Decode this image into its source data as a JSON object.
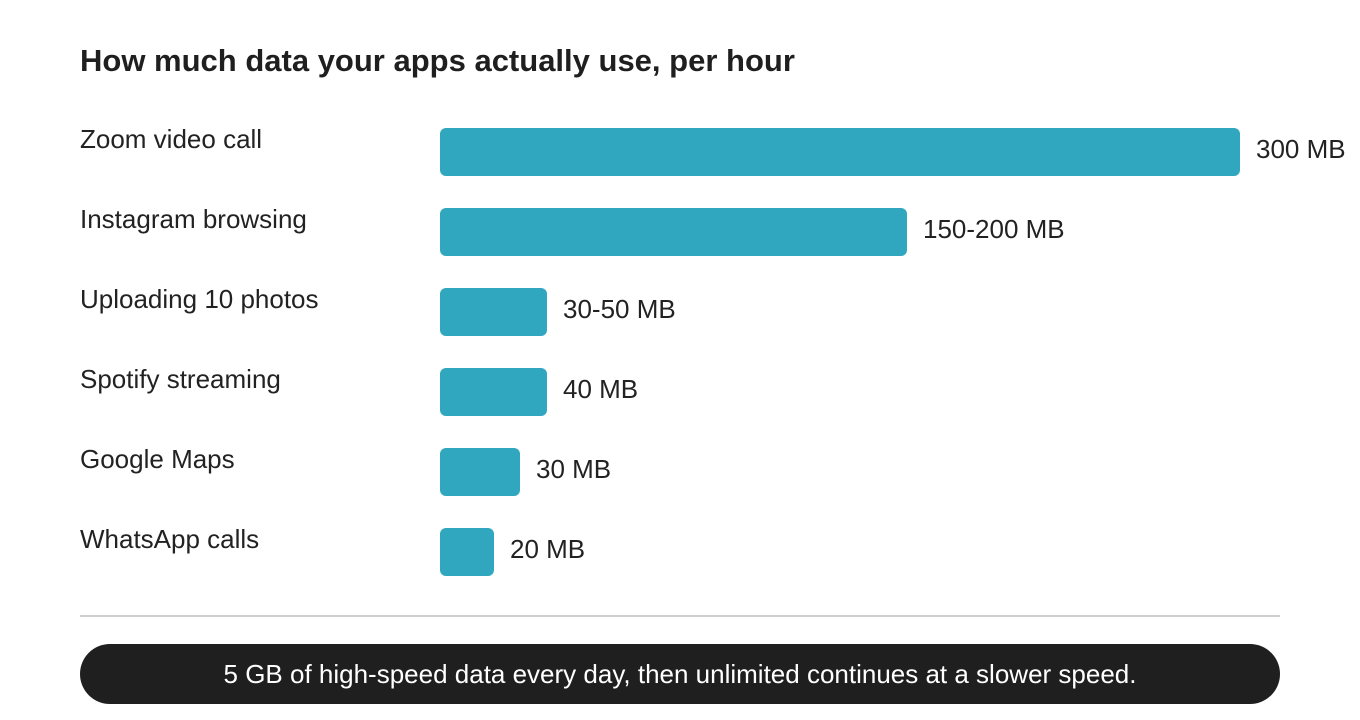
{
  "title": "How much data your apps actually use, per hour",
  "colors": {
    "bar": "#31a7bf",
    "footer_background": "#1f1f1f",
    "footer_text": "#ffffff"
  },
  "chart_data": {
    "type": "bar",
    "orientation": "horizontal",
    "title": "How much data your apps actually use, per hour",
    "unit": "MB",
    "categories": [
      "Zoom video call",
      "Instagram browsing",
      "Uploading 10 photos",
      "Spotify streaming",
      "Google Maps",
      "WhatsApp calls"
    ],
    "values": [
      300,
      175,
      40,
      40,
      30,
      20
    ],
    "value_labels": [
      "300 MB",
      "150-200 MB",
      "30-50 MB",
      "40 MB",
      "30 MB",
      "20 MB"
    ],
    "xlim": [
      0,
      300
    ],
    "grid": false,
    "legend": "none"
  },
  "footer": {
    "text": "5 GB of high-speed data every day, then unlimited continues at a slower speed."
  }
}
